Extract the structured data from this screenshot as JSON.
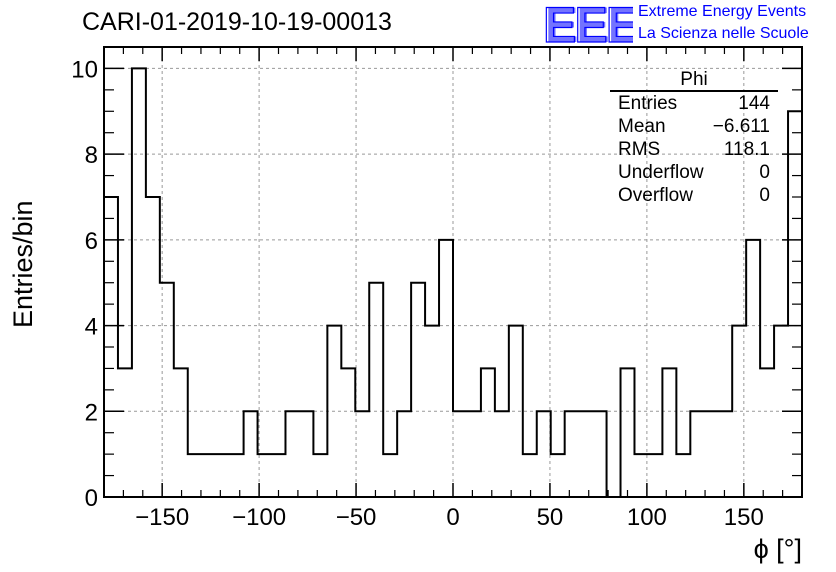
{
  "title": "CARI-01-2019-10-19-00013",
  "logo": {
    "mark": "EEE",
    "line1": "Extreme Energy Events",
    "line2": "La Scienza nelle Scuole",
    "color": "#0000ff"
  },
  "stats": {
    "title": "Phi",
    "rows": [
      {
        "label": "Entries",
        "value": "144"
      },
      {
        "label": "Mean",
        "value": "−6.611"
      },
      {
        "label": "RMS",
        "value": "118.1"
      },
      {
        "label": "Underflow",
        "value": "0"
      },
      {
        "label": "Overflow",
        "value": "0"
      }
    ]
  },
  "chart_data": {
    "type": "histogram",
    "title": "CARI-01-2019-10-19-00013",
    "xlabel": "ϕ [°]",
    "ylabel": "Entries/bin",
    "xlim": [
      -180,
      180
    ],
    "ylim": [
      0,
      10.5
    ],
    "bin_width": 7.2,
    "grid": true,
    "x_ticks": [
      -150,
      -100,
      -50,
      0,
      50,
      100,
      150
    ],
    "x_tick_labels": [
      "−150",
      "−100",
      "−50",
      "0",
      "50",
      "100",
      "150"
    ],
    "y_ticks": [
      0,
      2,
      4,
      6,
      8,
      10
    ],
    "y_tick_labels": [
      "0",
      "2",
      "4",
      "6",
      "8",
      "10"
    ],
    "values": [
      7,
      3,
      10,
      7,
      5,
      3,
      1,
      1,
      1,
      1,
      2,
      1,
      1,
      2,
      2,
      1,
      4,
      3,
      2,
      5,
      1,
      2,
      5,
      4,
      6,
      2,
      2,
      3,
      2,
      4,
      1,
      2,
      1,
      2,
      2,
      2,
      0,
      3,
      1,
      1,
      3,
      1,
      2,
      2,
      2,
      4,
      6,
      3,
      4,
      9
    ],
    "line_color": "#000000"
  }
}
